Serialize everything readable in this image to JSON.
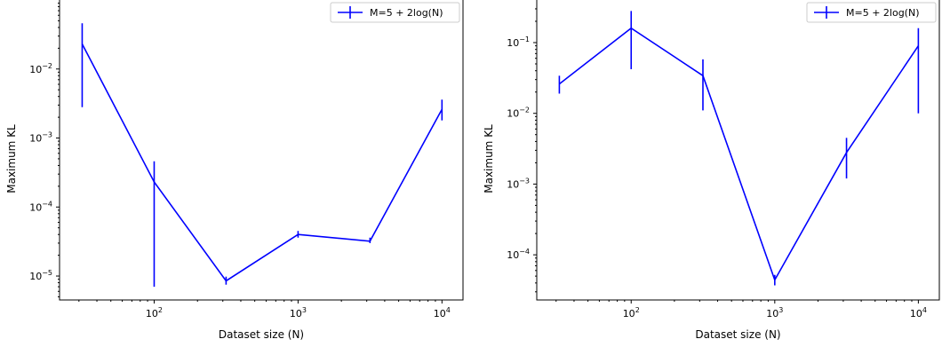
{
  "chart_data": [
    {
      "type": "line",
      "xscale": "log",
      "yscale": "log",
      "xlabel": "Dataset size (N)",
      "ylabel": "Maximum KL",
      "xlim": [
        22,
        14000
      ],
      "ylim": [
        4.5e-06,
        0.1
      ],
      "color": "#0000ff",
      "legend": {
        "position": "top-right"
      },
      "series": [
        {
          "name": "M=5 + 2log(N)",
          "x": [
            31.6,
            100,
            316,
            1000,
            3160,
            10000
          ],
          "y": [
            0.023,
            0.00023,
            8.5e-06,
            4e-05,
            3.2e-05,
            0.0026
          ],
          "err_low": [
            0.0028,
            7e-06,
            7.5e-06,
            3.6e-05,
            3e-05,
            0.0018
          ],
          "err_high": [
            0.046,
            0.00046,
            9.8e-06,
            4.5e-05,
            3.6e-05,
            0.0036
          ]
        }
      ],
      "x_ticks": [
        {
          "value": 100,
          "base": "10",
          "exp": "2"
        },
        {
          "value": 1000,
          "base": "10",
          "exp": "3"
        },
        {
          "value": 10000,
          "base": "10",
          "exp": "4"
        }
      ],
      "y_ticks": [
        {
          "value": 1e-05,
          "base": "10",
          "exp": "−5"
        },
        {
          "value": 0.0001,
          "base": "10",
          "exp": "−4"
        },
        {
          "value": 0.001,
          "base": "10",
          "exp": "−3"
        },
        {
          "value": 0.01,
          "base": "10",
          "exp": "−2"
        }
      ]
    },
    {
      "type": "line",
      "xscale": "log",
      "yscale": "log",
      "xlabel": "Dataset size (N)",
      "ylabel": "Maximum KL",
      "xlim": [
        22,
        14000
      ],
      "ylim": [
        2.3e-05,
        0.4
      ],
      "color": "#0000ff",
      "legend": {
        "position": "top-right"
      },
      "series": [
        {
          "name": "M=5 + 2log(N)",
          "x": [
            31.6,
            100,
            316,
            1000,
            3160,
            10000
          ],
          "y": [
            0.026,
            0.16,
            0.034,
            4.4e-05,
            0.0028,
            0.09
          ],
          "err_low": [
            0.019,
            0.042,
            0.011,
            3.7e-05,
            0.0012,
            0.01
          ],
          "err_high": [
            0.034,
            0.28,
            0.058,
            5.2e-05,
            0.0045,
            0.16
          ]
        }
      ],
      "x_ticks": [
        {
          "value": 100,
          "base": "10",
          "exp": "2"
        },
        {
          "value": 1000,
          "base": "10",
          "exp": "3"
        },
        {
          "value": 10000,
          "base": "10",
          "exp": "4"
        }
      ],
      "y_ticks": [
        {
          "value": 0.0001,
          "base": "10",
          "exp": "−4"
        },
        {
          "value": 0.001,
          "base": "10",
          "exp": "−3"
        },
        {
          "value": 0.01,
          "base": "10",
          "exp": "−2"
        },
        {
          "value": 0.1,
          "base": "10",
          "exp": "−1"
        }
      ]
    }
  ]
}
